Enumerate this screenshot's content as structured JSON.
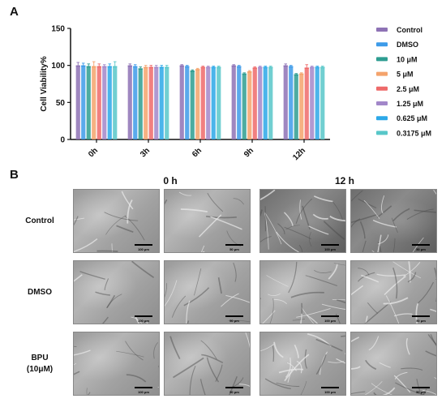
{
  "panel_a_letter": "A",
  "panel_b_letter": "B",
  "chart_data": {
    "type": "bar",
    "ylabel": "Cell Viability%",
    "xlabel": "",
    "ylim": [
      0,
      150
    ],
    "yticks": [
      "0",
      "50",
      "100",
      "150"
    ],
    "categories": [
      "0h",
      "3h",
      "6h",
      "9h",
      "12h"
    ],
    "grid": false,
    "legend_placement": "right",
    "series": [
      {
        "name": "Control",
        "color": "#8e72b5",
        "values": [
          100,
          100,
          100,
          100,
          100
        ],
        "errors": [
          4,
          2,
          1,
          1,
          2
        ]
      },
      {
        "name": "DMSO",
        "color": "#3d9be9",
        "values": [
          100,
          99,
          99,
          99,
          99
        ],
        "errors": [
          3,
          2,
          1,
          1,
          1
        ]
      },
      {
        "name": "10 μM",
        "color": "#2e9d91",
        "values": [
          99,
          96,
          93,
          89,
          88
        ],
        "errors": [
          3,
          2,
          1,
          1,
          1
        ]
      },
      {
        "name": "5 μM",
        "color": "#f4a36c",
        "values": [
          99,
          98,
          95,
          92,
          89
        ],
        "errors": [
          6,
          2,
          1,
          1,
          1
        ]
      },
      {
        "name": "2.5 μM",
        "color": "#ee6a6a",
        "values": [
          99,
          98,
          98,
          97,
          97
        ],
        "errors": [
          3,
          2,
          1,
          1,
          4
        ]
      },
      {
        "name": "1.25 μM",
        "color": "#a287c9",
        "values": [
          99,
          98,
          98,
          98,
          98
        ],
        "errors": [
          2,
          2,
          1,
          1,
          1
        ]
      },
      {
        "name": "0.625 μM",
        "color": "#2ca8e8",
        "values": [
          99,
          98,
          98,
          98,
          98
        ],
        "errors": [
          3,
          2,
          1,
          1,
          1
        ]
      },
      {
        "name": "0.3175 μM",
        "color": "#58c7c9",
        "values": [
          99,
          98,
          98,
          98,
          98
        ],
        "errors": [
          6,
          2,
          1,
          1,
          1
        ]
      }
    ]
  },
  "panel_b": {
    "columns": [
      "0 h",
      "12 h"
    ],
    "rows": [
      "Control",
      "DMSO",
      "BPU (10μM)"
    ],
    "row_labels": [
      [
        "Control"
      ],
      [
        "DMSO"
      ],
      [
        "BPU",
        "(10μM)"
      ]
    ],
    "scale_labels": [
      "100 μm",
      "50 μm",
      "100 μm",
      "50 μm"
    ]
  }
}
